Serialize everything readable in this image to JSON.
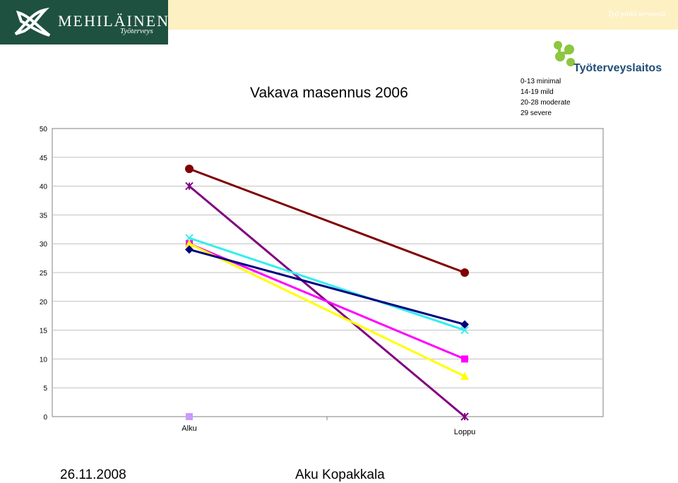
{
  "header": {
    "brand_name": "MEHILÄINEN",
    "brand_sub": "Työterveys",
    "tagline": "Työ pitää terveenä",
    "partner_name": "Työterveyslaitos",
    "brand_color": "#1f5140",
    "band_color": "#fdf0c2",
    "logo_icon": "mehilainen-logo-icon",
    "partner_icon": "tyoterveyslaitos-logo-icon"
  },
  "severity_legend": [
    "0-13 minimal",
    "14-19 mild",
    "20-28 moderate",
    "29 severe"
  ],
  "footer": {
    "date": "26.11.2008",
    "author": "Aku Kopakkala"
  },
  "chart_data": {
    "type": "line",
    "title": "Vakava masennus 2006",
    "categories": [
      "Alku",
      "Loppu"
    ],
    "ylim": [
      0,
      50
    ],
    "yticks": [
      0,
      5,
      10,
      15,
      20,
      25,
      30,
      35,
      40,
      45,
      50
    ],
    "grid": true,
    "series": [
      {
        "color": "#800000",
        "marker": "circle",
        "values": [
          43,
          25
        ]
      },
      {
        "color": "#800080",
        "marker": "star",
        "values": [
          40,
          0
        ]
      },
      {
        "color": "#33eeee",
        "marker": "x",
        "values": [
          31,
          15
        ]
      },
      {
        "color": "#ff00ff",
        "marker": "square",
        "values": [
          30,
          10
        ]
      },
      {
        "color": "#ffff00",
        "marker": "triangle",
        "values": [
          30,
          7
        ]
      },
      {
        "color": "#000080",
        "marker": "diamond",
        "values": [
          29,
          16
        ]
      }
    ],
    "stray_marker": {
      "category": "Alku",
      "value": 0,
      "color": "#cc99ff"
    }
  }
}
